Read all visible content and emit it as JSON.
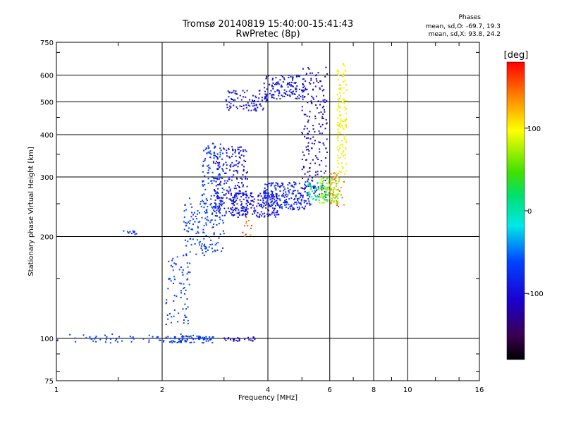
{
  "header": {
    "title": "Tromsø 20140819 15:40:00-15:41:43",
    "subtitle": "RwPretec (8p)"
  },
  "phase_panel": {
    "heading": "Phases",
    "line_o": "mean, sd,O: -69.7, 19.3",
    "line_x": "mean, sd,X:  93.8, 24.2"
  },
  "colorbar": {
    "label": "[deg]",
    "ticks": [
      {
        "value": 100,
        "label": "100"
      },
      {
        "value": 0,
        "label": "0"
      },
      {
        "value": -100,
        "label": "-100"
      }
    ],
    "range": [
      -180,
      180
    ]
  },
  "chart_data": {
    "type": "scatter",
    "xlabel": "Frequency [MHz]",
    "ylabel": "Stationary phase Virtual Height [km]",
    "xscale": "log",
    "yscale": "log",
    "xlim": [
      1,
      16
    ],
    "ylim": [
      75,
      750
    ],
    "xticks": [
      {
        "v": 1,
        "label": "1"
      },
      {
        "v": 2,
        "label": "2"
      },
      {
        "v": 4,
        "label": "4"
      },
      {
        "v": 6,
        "label": "6"
      },
      {
        "v": 8,
        "label": "8"
      },
      {
        "v": 10,
        "label": "10"
      },
      {
        "v": 16,
        "label": "16"
      }
    ],
    "yticks": [
      {
        "v": 75,
        "label": "75"
      },
      {
        "v": 100,
        "label": "100"
      },
      {
        "v": 200,
        "label": "200"
      },
      {
        "v": 300,
        "label": "300"
      },
      {
        "v": 400,
        "label": "400"
      },
      {
        "v": 500,
        "label": "500"
      },
      {
        "v": 600,
        "label": "600"
      },
      {
        "v": 750,
        "label": "750"
      }
    ],
    "grid": true,
    "color_by": "phase [deg]",
    "clusters": [
      {
        "f": [
          1.0,
          2.8
        ],
        "h": [
          97,
          103
        ],
        "phase": [
          -75,
          -60
        ],
        "n": 70
      },
      {
        "f": [
          2.1,
          2.8
        ],
        "h": [
          97,
          102
        ],
        "phase": [
          -75,
          -60
        ],
        "n": 60
      },
      {
        "f": [
          3.0,
          3.7
        ],
        "h": [
          98,
          101
        ],
        "phase": [
          -120,
          -100
        ],
        "n": 25
      },
      {
        "f": [
          1.55,
          1.7
        ],
        "h": [
          203,
          208
        ],
        "phase": [
          -80,
          -60
        ],
        "n": 12
      },
      {
        "f": [
          2.05,
          2.4
        ],
        "h": [
          110,
          175
        ],
        "phase": [
          -80,
          -55
        ],
        "n": 70
      },
      {
        "f": [
          2.3,
          2.7
        ],
        "h": [
          175,
          260
        ],
        "phase": [
          -75,
          -55
        ],
        "n": 80
      },
      {
        "f": [
          2.6,
          3.0
        ],
        "h": [
          180,
          380
        ],
        "phase": [
          -85,
          -55
        ],
        "n": 180
      },
      {
        "f": [
          2.8,
          3.5
        ],
        "h": [
          230,
          370
        ],
        "phase": [
          -110,
          -80
        ],
        "n": 220
      },
      {
        "f": [
          3.1,
          4.3
        ],
        "h": [
          228,
          270
        ],
        "phase": [
          -110,
          -85
        ],
        "n": 200
      },
      {
        "f": [
          3.9,
          5.3
        ],
        "h": [
          240,
          290
        ],
        "phase": [
          -95,
          -70
        ],
        "n": 200
      },
      {
        "f": [
          3.0,
          4.0
        ],
        "h": [
          470,
          540
        ],
        "phase": [
          -110,
          -85
        ],
        "n": 90
      },
      {
        "f": [
          3.9,
          5.1
        ],
        "h": [
          510,
          600
        ],
        "phase": [
          -105,
          -80
        ],
        "n": 130
      },
      {
        "f": [
          5.0,
          5.9
        ],
        "h": [
          260,
          640
        ],
        "phase": [
          -120,
          -90
        ],
        "n": 200
      },
      {
        "f": [
          5.2,
          6.0
        ],
        "h": [
          255,
          290
        ],
        "phase": [
          -20,
          30
        ],
        "n": 60
      },
      {
        "f": [
          5.6,
          6.4
        ],
        "h": [
          250,
          300
        ],
        "phase": [
          40,
          90
        ],
        "n": 90
      },
      {
        "f": [
          6.3,
          6.7
        ],
        "h": [
          300,
          650
        ],
        "phase": [
          85,
          110
        ],
        "n": 140
      },
      {
        "f": [
          6.0,
          6.6
        ],
        "h": [
          245,
          310
        ],
        "phase": [
          120,
          160
        ],
        "n": 40
      },
      {
        "f": [
          3.3,
          3.6
        ],
        "h": [
          195,
          230
        ],
        "phase": [
          130,
          175
        ],
        "n": 12
      }
    ]
  }
}
